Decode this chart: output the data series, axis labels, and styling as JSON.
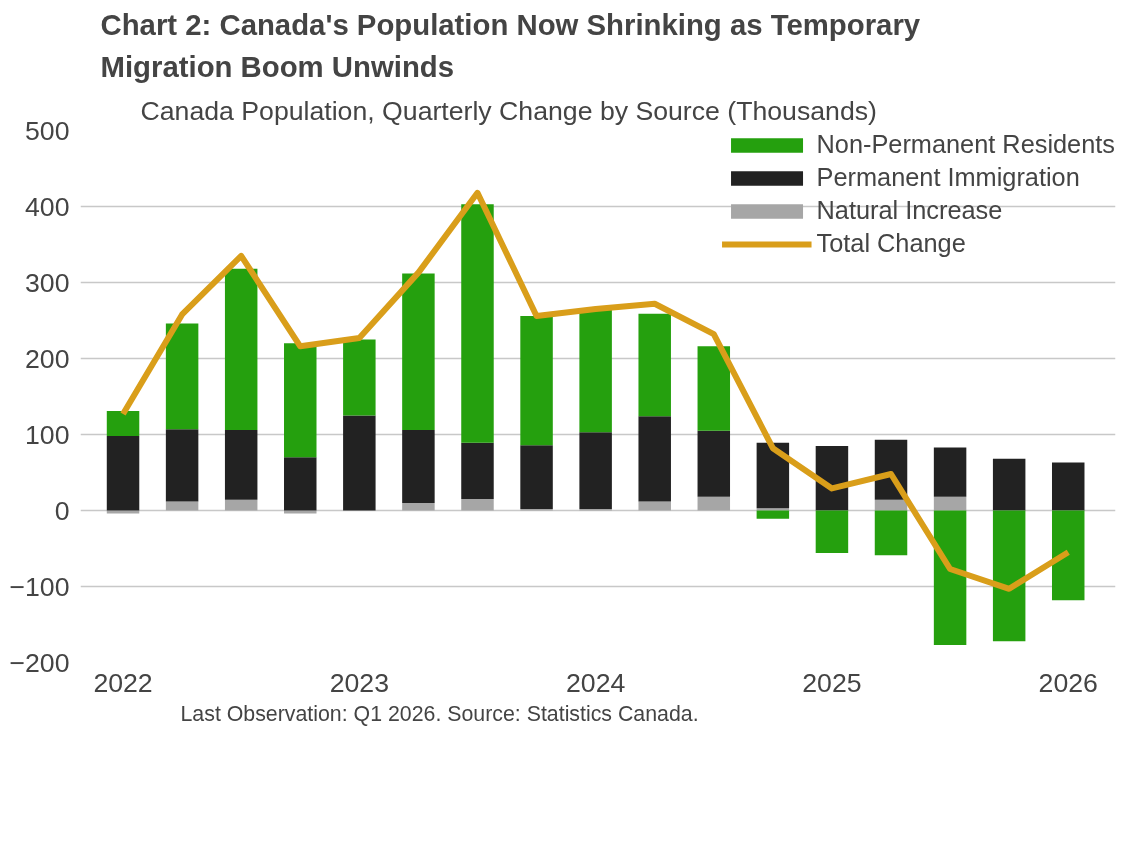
{
  "chart_data": {
    "type": "bar",
    "stacked": true,
    "title": "Chart 2: Canada's Population Now Shrinking as Temporary Migration Boom Unwinds",
    "subtitle": "Canada Population, Quarterly Change by Source (Thousands)",
    "annotations": [
      "Last Observation: Q1 2026. Source: Statistics Canada."
    ],
    "x": [
      2022,
      2022.25,
      2022.5,
      2022.75,
      2023,
      2023.25,
      2023.5,
      2023.75,
      2024,
      2024.25,
      2024.5,
      2024.75,
      2025,
      2025.25,
      2025.5,
      2025.75,
      2026
    ],
    "xlim": [
      2021.82,
      2026.2
    ],
    "xticks": [
      2022,
      2023,
      2024,
      2025,
      2026
    ],
    "ylim": [
      -200,
      500
    ],
    "yticks": [
      -200,
      -100,
      0,
      100,
      200,
      300,
      400,
      500
    ],
    "grid": "y",
    "legend": "top right",
    "series": [
      {
        "name": "Natural Increase",
        "color": "#a6a6a6",
        "values": [
          -4,
          12,
          14,
          -4,
          null,
          10,
          15,
          2,
          2,
          12,
          18,
          3,
          0,
          14,
          18,
          0,
          0
        ]
      },
      {
        "name": "Permanent Immigration",
        "color": "#222222",
        "values": [
          98,
          95,
          92,
          70,
          125,
          96,
          74,
          84,
          101,
          112,
          87,
          86,
          85,
          79,
          65,
          68,
          63
        ]
      },
      {
        "name": "Non-Permanent Residents",
        "color": "#25a00e",
        "values": [
          33,
          139,
          212,
          150,
          100,
          206,
          314,
          170,
          162,
          135,
          111,
          -11,
          -56,
          -59,
          -177,
          -172,
          -118
        ]
      },
      {
        "name": "Total Change",
        "type": "line",
        "color": "#d99e1a",
        "values": [
          127,
          258,
          335,
          216,
          227,
          313,
          418,
          256,
          265,
          272,
          232,
          82,
          29,
          48,
          -77,
          -103,
          -55
        ]
      }
    ]
  }
}
